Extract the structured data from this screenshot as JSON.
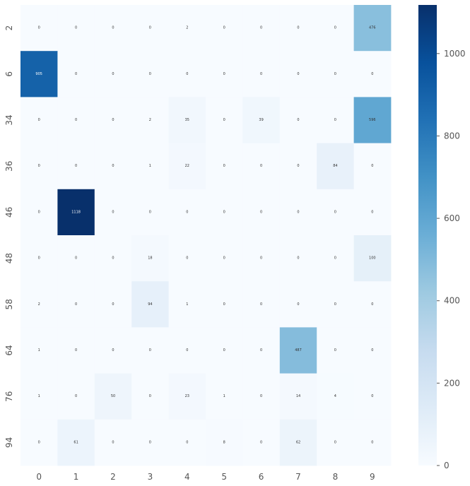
{
  "chart_data": {
    "type": "heatmap",
    "title": "",
    "xlabel": "",
    "ylabel": "",
    "x_categories": [
      "0",
      "1",
      "2",
      "3",
      "4",
      "5",
      "6",
      "7",
      "8",
      "9"
    ],
    "y_categories": [
      "2",
      "6",
      "34",
      "36",
      "46",
      "48",
      "58",
      "64",
      "76",
      "94"
    ],
    "values": [
      [
        0,
        0,
        0,
        0,
        2,
        0,
        0,
        0,
        0,
        476
      ],
      [
        905,
        0,
        0,
        0,
        0,
        0,
        0,
        0,
        0,
        0
      ],
      [
        0,
        0,
        0,
        2,
        35,
        0,
        39,
        0,
        0,
        596
      ],
      [
        0,
        0,
        0,
        1,
        22,
        0,
        0,
        0,
        84,
        0
      ],
      [
        0,
        1118,
        0,
        0,
        0,
        0,
        0,
        0,
        0,
        0
      ],
      [
        0,
        0,
        0,
        18,
        0,
        0,
        0,
        0,
        0,
        100
      ],
      [
        2,
        0,
        0,
        94,
        1,
        0,
        0,
        0,
        0,
        0
      ],
      [
        1,
        0,
        0,
        0,
        0,
        0,
        0,
        487,
        0,
        0
      ],
      [
        1,
        0,
        50,
        0,
        23,
        1,
        0,
        14,
        4,
        0
      ],
      [
        0,
        61,
        0,
        0,
        0,
        8,
        0,
        62,
        0,
        0
      ]
    ],
    "colormap": "Blues",
    "color_low": "#f7fbff",
    "color_high": "#08306b",
    "vmin": 0,
    "vmax": 1118,
    "colorbar_ticks": [
      0,
      200,
      400,
      600,
      800,
      1000
    ],
    "colorbar_labels": [
      "0",
      "200",
      "400",
      "600",
      "800",
      "1000"
    ]
  }
}
